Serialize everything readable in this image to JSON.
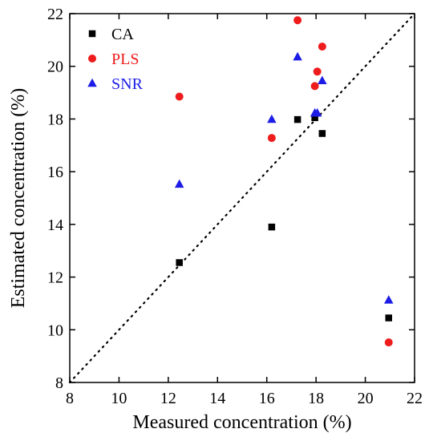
{
  "chart_data": {
    "type": "scatter",
    "title": "",
    "xlabel": "Measured concentration (%)",
    "ylabel": "Estimated concentration (%)",
    "xlim": [
      8,
      22
    ],
    "ylim": [
      8,
      22
    ],
    "xticks": [
      8,
      10,
      12,
      14,
      16,
      18,
      20,
      22
    ],
    "yticks": [
      8,
      10,
      12,
      14,
      16,
      18,
      20,
      22
    ],
    "grid": false,
    "legend_position": "top-left",
    "reference_line": {
      "style": "dotted",
      "from": [
        8,
        8
      ],
      "to": [
        22,
        22
      ]
    },
    "series": [
      {
        "name": "CA",
        "marker": "square",
        "color": "#000000",
        "points": [
          [
            12.45,
            12.55
          ],
          [
            16.2,
            13.9
          ],
          [
            17.25,
            17.98
          ],
          [
            17.95,
            18.05
          ],
          [
            18.25,
            17.45
          ],
          [
            20.95,
            10.45
          ]
        ]
      },
      {
        "name": "PLS",
        "marker": "circle",
        "color": "#ee1c1c",
        "points": [
          [
            12.45,
            18.85
          ],
          [
            16.2,
            17.28
          ],
          [
            17.25,
            21.75
          ],
          [
            17.95,
            19.25
          ],
          [
            18.05,
            19.8
          ],
          [
            18.25,
            20.75
          ],
          [
            20.95,
            9.52
          ]
        ]
      },
      {
        "name": "SNR",
        "marker": "triangle",
        "color": "#1c1ce6",
        "points": [
          [
            12.45,
            15.52
          ],
          [
            16.2,
            17.98
          ],
          [
            17.25,
            20.35
          ],
          [
            17.95,
            18.22
          ],
          [
            18.05,
            18.22
          ],
          [
            18.25,
            19.45
          ],
          [
            20.95,
            11.12
          ]
        ]
      }
    ]
  }
}
